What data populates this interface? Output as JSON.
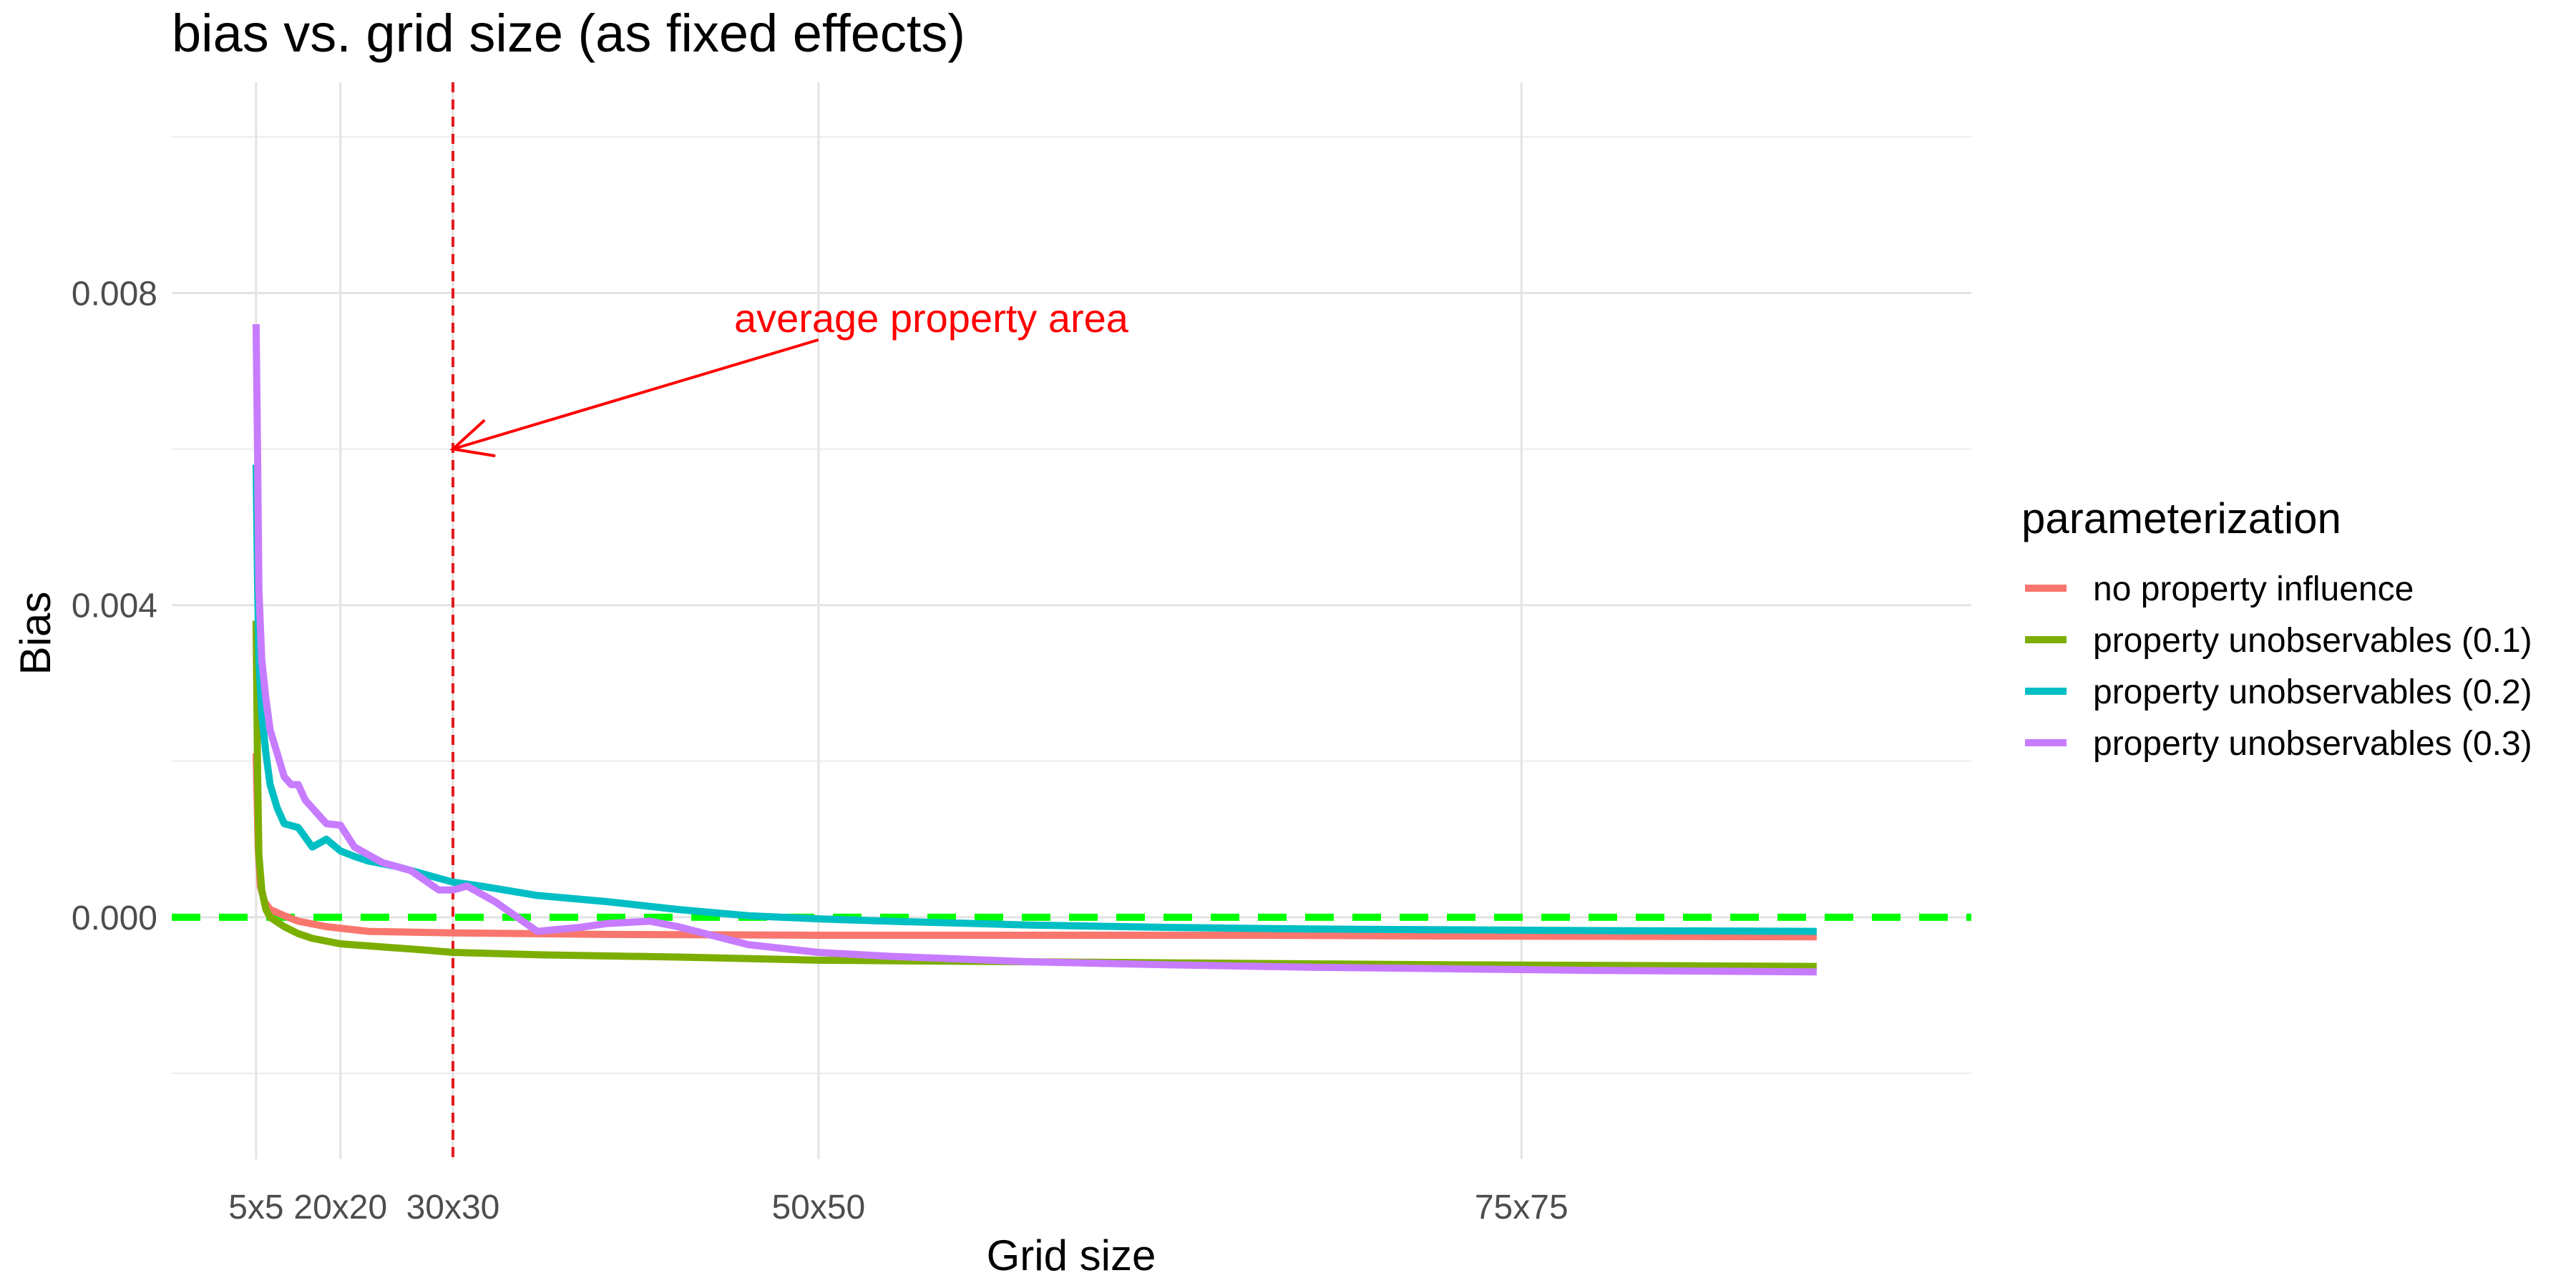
{
  "chart_data": {
    "type": "line",
    "title": "bias vs. grid size (as fixed effects)",
    "xlabel": "Grid size",
    "ylabel": "Bias",
    "x_tick_labels": [
      {
        "x": 5,
        "label": "5x5"
      },
      {
        "x": 11,
        "label": "20x20"
      },
      {
        "x": 19,
        "label": "30x30"
      },
      {
        "x": 45,
        "label": "50x50"
      },
      {
        "x": 95,
        "label": "75x75"
      }
    ],
    "xlim": [
      -1,
      127
    ],
    "y_ticks": [
      {
        "y": 0.0,
        "label": "0.000"
      },
      {
        "y": 0.004,
        "label": "0.004"
      },
      {
        "y": 0.008,
        "label": "0.008"
      }
    ],
    "ylim": [
      -0.0031,
      0.0107
    ],
    "grid": true,
    "legend_position": "right",
    "legend_title": "parameterization",
    "reference_lines": [
      {
        "orientation": "horizontal",
        "value": 0.0,
        "color": "#00ff00",
        "style": "dashed"
      },
      {
        "orientation": "vertical",
        "value": 19,
        "color": "#e41a1c",
        "style": "dashed"
      }
    ],
    "annotation": {
      "text": "average property area",
      "color": "#ff0000",
      "text_at": {
        "x": 39,
        "y": 0.0075
      },
      "arrow_from": {
        "x": 45,
        "y": 0.0074
      },
      "arrow_to": {
        "x": 19,
        "y": 0.006
      }
    },
    "series": [
      {
        "name": "no property influence",
        "color": "#f8766d",
        "x": [
          5,
          5.15,
          5.3,
          5.6,
          6,
          7,
          8,
          10,
          13,
          19,
          30,
          45,
          60,
          75,
          90,
          116
        ],
        "y": [
          0.0021,
          0.0009,
          0.0004,
          0.0002,
          0.0001,
          2e-05,
          -5e-05,
          -0.00012,
          -0.00018,
          -0.0002,
          -0.00022,
          -0.00023,
          -0.00023,
          -0.00023,
          -0.00024,
          -0.00025
        ]
      },
      {
        "name": "property unobservables (0.1)",
        "color": "#7cae00",
        "x": [
          5,
          5.1,
          5.2,
          5.4,
          5.7,
          6,
          7,
          8,
          9,
          11,
          14,
          17,
          19,
          25,
          35,
          45,
          60,
          75,
          90,
          105,
          116
        ],
        "y": [
          0.0038,
          0.0019,
          0.0008,
          0.00035,
          0.0001,
          0.0,
          -0.00012,
          -0.00021,
          -0.00027,
          -0.00034,
          -0.00038,
          -0.00042,
          -0.00045,
          -0.00048,
          -0.00051,
          -0.00055,
          -0.00057,
          -0.00059,
          -0.00061,
          -0.00062,
          -0.00063
        ]
      },
      {
        "name": "property unobservables (0.2)",
        "color": "#00bfc4",
        "x": [
          5,
          5.1,
          5.2,
          5.4,
          5.7,
          6,
          6.5,
          7,
          8,
          9,
          10,
          11,
          12,
          13,
          15,
          17,
          19,
          21,
          25,
          30,
          35,
          40,
          45,
          50,
          60,
          70,
          80,
          90,
          100,
          116
        ],
        "y": [
          0.0058,
          0.0043,
          0.0033,
          0.0026,
          0.0021,
          0.0017,
          0.0014,
          0.0012,
          0.00115,
          0.0009,
          0.001,
          0.00085,
          0.00078,
          0.00072,
          0.00065,
          0.00055,
          0.00045,
          0.0004,
          0.00028,
          0.0002,
          0.0001,
          2e-05,
          -2e-05,
          -5e-05,
          -0.0001,
          -0.00013,
          -0.00015,
          -0.00016,
          -0.00017,
          -0.00018
        ]
      },
      {
        "name": "property unobservables (0.3)",
        "color": "#c77cff",
        "x": [
          5,
          5.1,
          5.2,
          5.4,
          5.7,
          6,
          6.5,
          7,
          7.5,
          8,
          8.5,
          9,
          9.5,
          10,
          11,
          12,
          14,
          16,
          18,
          19,
          20,
          22,
          25,
          28,
          30,
          33,
          35,
          40,
          45,
          50,
          60,
          70,
          80,
          90,
          100,
          116
        ],
        "y": [
          0.0076,
          0.006,
          0.0042,
          0.0033,
          0.0028,
          0.0024,
          0.0021,
          0.0018,
          0.0017,
          0.0017,
          0.0015,
          0.0014,
          0.0013,
          0.0012,
          0.00118,
          0.0009,
          0.0007,
          0.0006,
          0.00035,
          0.00035,
          0.0004,
          0.0002,
          -0.00018,
          -0.00013,
          -8e-05,
          -5e-05,
          -0.00012,
          -0.00035,
          -0.00045,
          -0.0005,
          -0.00057,
          -0.00061,
          -0.00064,
          -0.00066,
          -0.00068,
          -0.0007
        ]
      }
    ]
  }
}
